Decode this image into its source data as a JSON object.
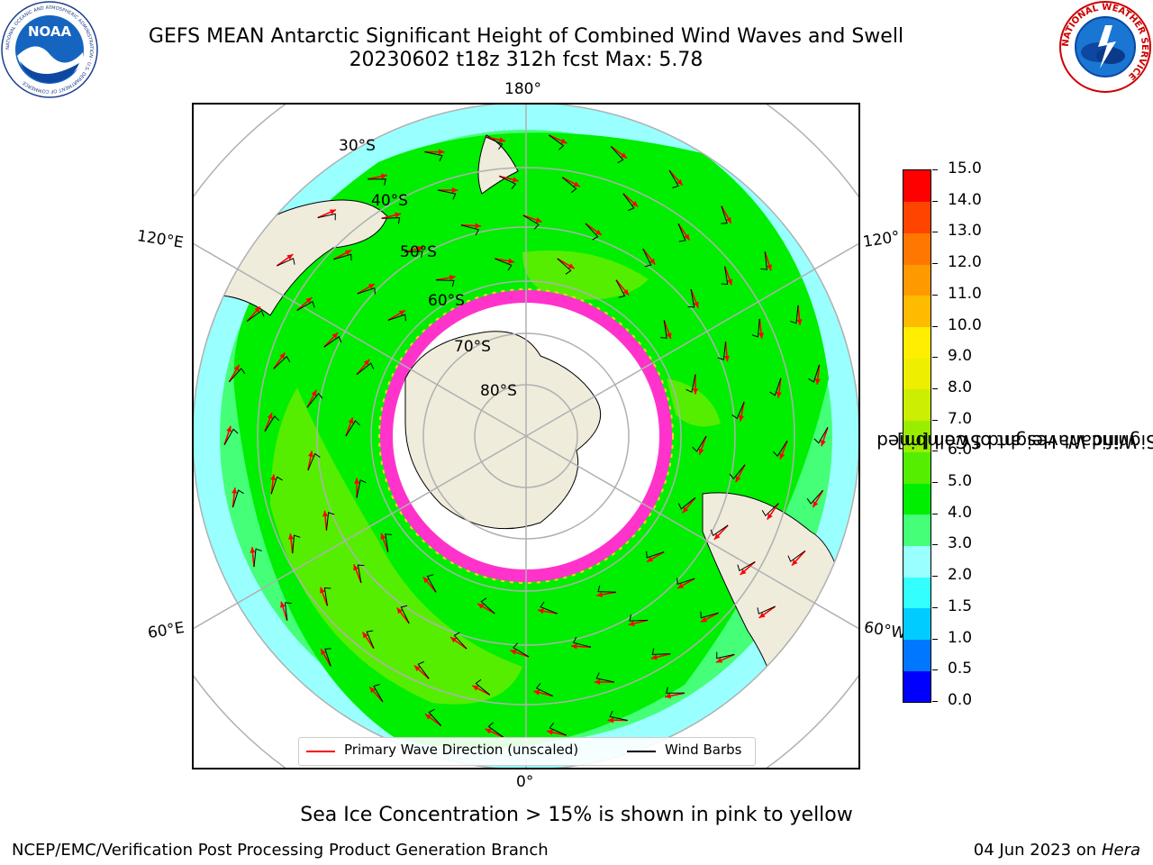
{
  "header": {
    "title_line1": "GEFS MEAN Antarctic Significant Height of Combined Wind Waves and Swell",
    "title_line2": "20230602 t18z 312h fcst   Max: 5.78"
  },
  "logos": {
    "left": {
      "name": "noaa-logo",
      "text": "NOAA",
      "ring_text": "NATIONAL OCEANIC AND ATMOSPHERIC ADMINISTRATION · U.S. DEPARTMENT OF COMMERCE"
    },
    "right": {
      "name": "nws-logo",
      "ring_text": "NATIONAL WEATHER SERVICE"
    }
  },
  "map": {
    "projection": "south-polar-stereographic",
    "lon_labels": {
      "top": "180°",
      "left_upper": "120°E",
      "right_upper": "120°",
      "left_lower": "60°E",
      "right_lower": "60°W",
      "bottom": "0°"
    },
    "lat_labels": [
      "30°S",
      "40°S",
      "50°S",
      "60°S",
      "70°S",
      "80°S"
    ],
    "colors": {
      "land": "#efecdc",
      "ice_edge": "#ff33cc",
      "wave_arrow": "#ff0000",
      "wind_barb": "#000000",
      "grid": "#b0b0b0"
    }
  },
  "colorbar": {
    "label_line1": "Significant Height of Combined",
    "label_line2": "Wind Waves and Swell [m]",
    "ticks": [
      "0.0",
      "0.5",
      "1.0",
      "1.5",
      "2.0",
      "3.0",
      "4.0",
      "5.0",
      "6.0",
      "7.0",
      "8.0",
      "9.0",
      "10.0",
      "11.0",
      "12.0",
      "13.0",
      "14.0",
      "15.0"
    ],
    "colors": [
      "#0000ff",
      "#0077ff",
      "#00ccff",
      "#33ffff",
      "#99ffff",
      "#44ff77",
      "#00ee00",
      "#55ee00",
      "#99ee00",
      "#ccee00",
      "#eeee00",
      "#ffee00",
      "#ffbb00",
      "#ff9900",
      "#ff7700",
      "#ff4400",
      "#ff0000"
    ]
  },
  "legend": {
    "wave_label": "Primary Wave Direction (unscaled)",
    "wind_label": "Wind Barbs"
  },
  "note": "Sea Ice Concentration > 15% is shown in pink to yellow",
  "footer": {
    "left": "NCEP/EMC/Verification Post Processing Product Generation Branch",
    "right_prefix": "04 Jun 2023 on",
    "right_host": "Hera"
  }
}
